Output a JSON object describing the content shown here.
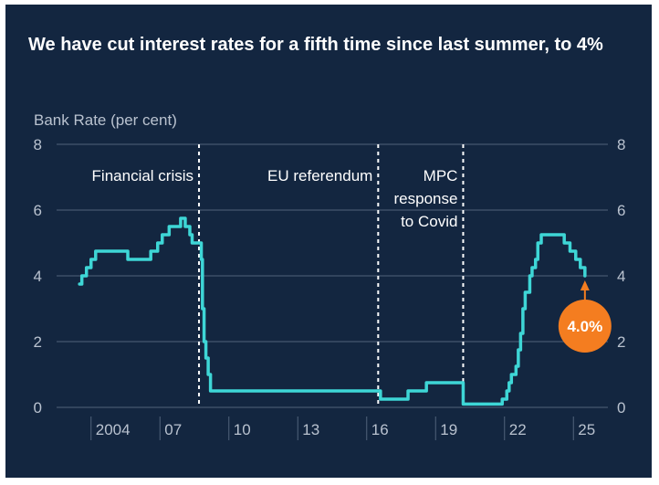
{
  "chart_data": {
    "type": "line",
    "title": "We have cut interest rates for a fifth time since last summer, to 4%",
    "ylabel": "Bank Rate (per cent)",
    "xlabel": "",
    "ylim": [
      0,
      8
    ],
    "xlim": [
      2002.5,
      2026.5
    ],
    "yticks": [
      "0",
      "2",
      "4",
      "6",
      "8"
    ],
    "xticks": [
      {
        "label": "2004",
        "value": 2004
      },
      {
        "label": "07",
        "value": 2007
      },
      {
        "label": "10",
        "value": 2010
      },
      {
        "label": "13",
        "value": 2013
      },
      {
        "label": "16",
        "value": 2016
      },
      {
        "label": "19",
        "value": 2019
      },
      {
        "label": "22",
        "value": 2022
      },
      {
        "label": "25",
        "value": 2025
      }
    ],
    "grid": true,
    "events": [
      {
        "label": "Financial crisis",
        "x": 2008.7
      },
      {
        "label": "EU referendum",
        "x": 2016.5
      },
      {
        "label": "MPC response to Covid",
        "x": 2020.2
      }
    ],
    "series": [
      {
        "values": [
          [
            2003.5,
            3.75
          ],
          [
            2003.6,
            4.0
          ],
          [
            2003.8,
            4.25
          ],
          [
            2004.0,
            4.5
          ],
          [
            2004.2,
            4.75
          ],
          [
            2005.6,
            4.5
          ],
          [
            2006.6,
            4.75
          ],
          [
            2006.9,
            5.0
          ],
          [
            2007.1,
            5.25
          ],
          [
            2007.4,
            5.5
          ],
          [
            2007.9,
            5.75
          ],
          [
            2008.1,
            5.5
          ],
          [
            2008.3,
            5.25
          ],
          [
            2008.4,
            5.0
          ],
          [
            2008.8,
            4.5
          ],
          [
            2008.85,
            3.0
          ],
          [
            2008.92,
            2.0
          ],
          [
            2009.0,
            1.5
          ],
          [
            2009.1,
            1.0
          ],
          [
            2009.2,
            0.5
          ],
          [
            2016.6,
            0.25
          ],
          [
            2017.8,
            0.5
          ],
          [
            2018.6,
            0.75
          ],
          [
            2020.2,
            0.1
          ],
          [
            2021.9,
            0.25
          ],
          [
            2022.1,
            0.5
          ],
          [
            2022.2,
            0.75
          ],
          [
            2022.3,
            1.0
          ],
          [
            2022.5,
            1.25
          ],
          [
            2022.6,
            1.75
          ],
          [
            2022.7,
            2.25
          ],
          [
            2022.8,
            3.0
          ],
          [
            2022.9,
            3.5
          ],
          [
            2023.1,
            4.0
          ],
          [
            2023.2,
            4.25
          ],
          [
            2023.35,
            4.5
          ],
          [
            2023.45,
            5.0
          ],
          [
            2023.6,
            5.25
          ],
          [
            2024.6,
            5.0
          ],
          [
            2024.85,
            4.75
          ],
          [
            2025.1,
            4.5
          ],
          [
            2025.3,
            4.25
          ],
          [
            2025.5,
            4.0
          ]
        ]
      }
    ],
    "annotation": {
      "label": "4.0%",
      "x": 2025.5,
      "y": 4.0
    }
  },
  "colors": {
    "background": "#132640",
    "line": "#3ed6d6",
    "grid": "#51627a",
    "text": "#ffffff",
    "muted": "#b9c2cf",
    "accent": "#f47d20"
  }
}
